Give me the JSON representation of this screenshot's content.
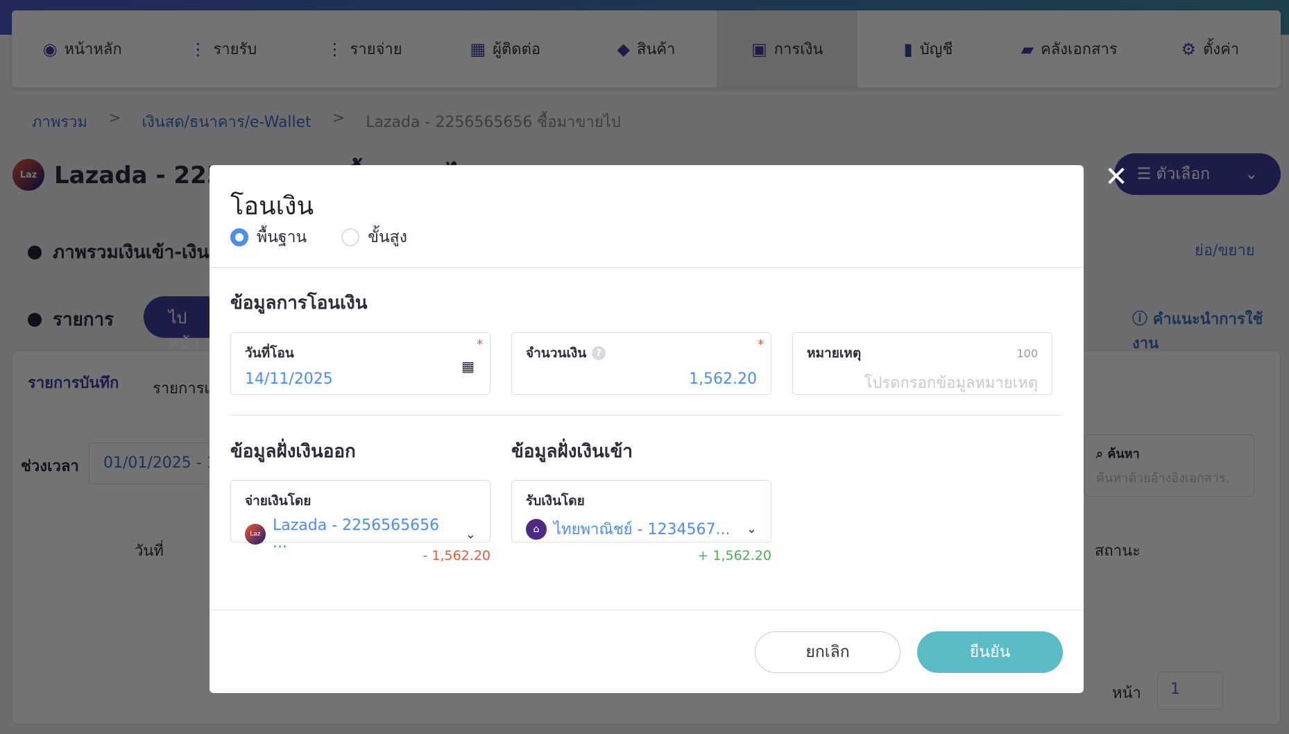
{
  "nav": [
    {
      "icon": "dashboard-icon",
      "label": "หน้าหลัก"
    },
    {
      "icon": "income-icon",
      "label": "รายรับ"
    },
    {
      "icon": "expense-icon",
      "label": "รายจ่าย"
    },
    {
      "icon": "contacts-icon",
      "label": "ผู้ติดต่อ"
    },
    {
      "icon": "box-icon",
      "label": "สินค้า"
    },
    {
      "icon": "money-icon",
      "label": "การเงิน",
      "active": true
    },
    {
      "icon": "book-icon",
      "label": "บัญชี"
    },
    {
      "icon": "folder-icon",
      "label": "คลังเอกสาร"
    },
    {
      "icon": "gear-icon",
      "label": "ตั้งค่า"
    }
  ],
  "breadcrumb": [
    "ภาพรวม",
    "เงินสด/ธนาคาร/e-Wallet",
    "Lazada - 2256565656 ซื้อมาขายไป"
  ],
  "page": {
    "title": "Lazada - 2256565656 ซื้อมาขายไป",
    "options": "ตัวเลือก",
    "overview": "ภาพรวมเงินเข้า-เงินออก",
    "collapse": "ย่อ/ขยาย",
    "list": "รายการ",
    "goto": "ไปหน้า",
    "help": "คำแนะนำการใช้งาน",
    "tab1": "รายการบันทึก",
    "tab2": "รายการเ",
    "period_label": "ช่วงเวลา",
    "period_value": "01/01/2025 - 1",
    "search_label": "ค้นหา",
    "search_placeholder": "ค้นหาด้วยอ้างอิงเอกสาร,",
    "col_date": "วันที่",
    "col_status": "สถานะ",
    "page_label": "หน้า",
    "page_value": "1",
    "logo_text": "Laz"
  },
  "modal": {
    "title": "โอนเงิน",
    "mode": [
      {
        "label": "พื้นฐาน",
        "selected": true
      },
      {
        "label": "ขั้นสูง",
        "selected": false
      }
    ],
    "section1": "ข้อมูลการโอนเงิน",
    "date": {
      "label": "วันที่โอน",
      "value": "14/11/2025"
    },
    "amount": {
      "label": "จำนวนเงิน",
      "value": "1,562.20"
    },
    "note": {
      "label": "หมายเหตุ",
      "limit": "100",
      "placeholder": "โปรดกรอกข้อมูลหมายเหตุ"
    },
    "out": {
      "title": "ข้อมูลฝั่งเงินออก",
      "label": "จ่ายเงินโดย",
      "value": "Lazada - 2256565656 ...",
      "amount": "- 1,562.20"
    },
    "in": {
      "title": "ข้อมูลฝั่งเงินเข้า",
      "label": "รับเงินโดย",
      "value": "ไทยพาณิชย์ - 1234567...",
      "amount": "+ 1,562.20"
    },
    "cancel": "ยกเลิก",
    "confirm": "ยืนยัน"
  },
  "colors": {
    "accent": "#4a8ef0",
    "confirm": "#5bbcc8",
    "negative": "#e25b3a",
    "positive": "#4caf50",
    "brand": "#3c3f9e"
  }
}
